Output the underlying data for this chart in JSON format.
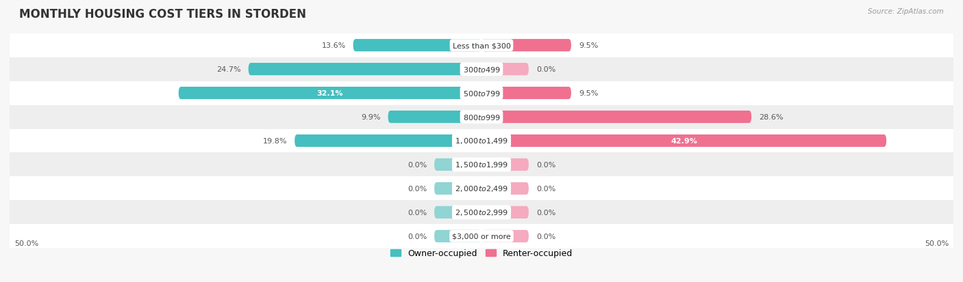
{
  "title": "MONTHLY HOUSING COST TIERS IN STORDEN",
  "source": "Source: ZipAtlas.com",
  "categories": [
    "Less than $300",
    "$300 to $499",
    "$500 to $799",
    "$800 to $999",
    "$1,000 to $1,499",
    "$1,500 to $1,999",
    "$2,000 to $2,499",
    "$2,500 to $2,999",
    "$3,000 or more"
  ],
  "owner_values": [
    13.6,
    24.7,
    32.1,
    9.9,
    19.8,
    0.0,
    0.0,
    0.0,
    0.0
  ],
  "renter_values": [
    9.5,
    0.0,
    9.5,
    28.6,
    42.9,
    0.0,
    0.0,
    0.0,
    0.0
  ],
  "owner_color": "#45BFBF",
  "renter_color": "#F07090",
  "owner_color_zero": "#90D4D4",
  "renter_color_zero": "#F5AABF",
  "axis_limit": 50.0,
  "bar_height": 0.52,
  "zero_stub": 5.0,
  "background_color": "#f7f7f7",
  "row_colors": [
    "#ffffff",
    "#eeeeee"
  ],
  "title_fontsize": 12,
  "cat_fontsize": 8,
  "value_fontsize": 8,
  "legend_fontsize": 9,
  "value_color": "#555555",
  "value_color_inside": "#ffffff"
}
